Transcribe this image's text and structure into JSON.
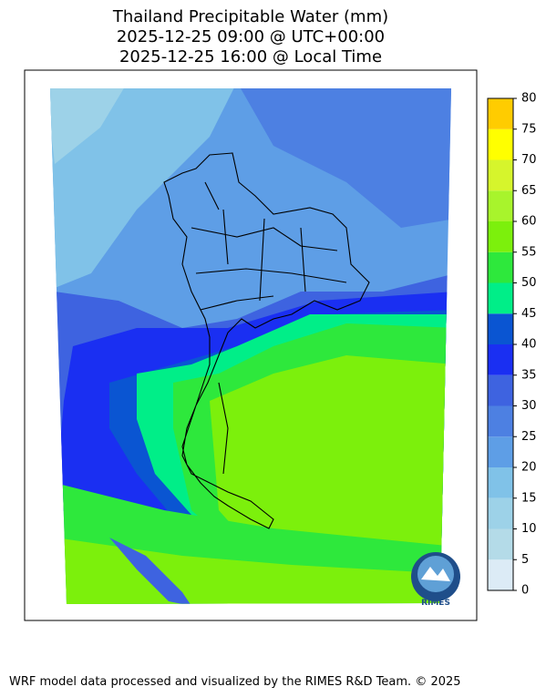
{
  "header": {
    "title_lines": [
      "Thailand Precipitable Water (mm)",
      "2025-12-25 09:00 @ UTC+00:00",
      "2025-12-25 16:00 @ Local Time"
    ]
  },
  "colorbar": {
    "levels": [
      0,
      5,
      10,
      15,
      20,
      25,
      30,
      35,
      40,
      45,
      50,
      55,
      60,
      65,
      70,
      75,
      80
    ],
    "colors": [
      "#dcebf6",
      "#b4dbe8",
      "#9dd2e8",
      "#80c2e8",
      "#5e9ee6",
      "#4d80e2",
      "#3e63e0",
      "#1a2ff2",
      "#0a55d2",
      "#00ee88",
      "#2ee83c",
      "#7cf00c",
      "#a8f42c",
      "#d6f52c",
      "#ffff00",
      "#ffcc00"
    ]
  },
  "logo": {
    "text": "RIMES"
  },
  "footer": {
    "text": "WRF model data processed and visualized by the RIMES R&D Team. © 2025"
  }
}
